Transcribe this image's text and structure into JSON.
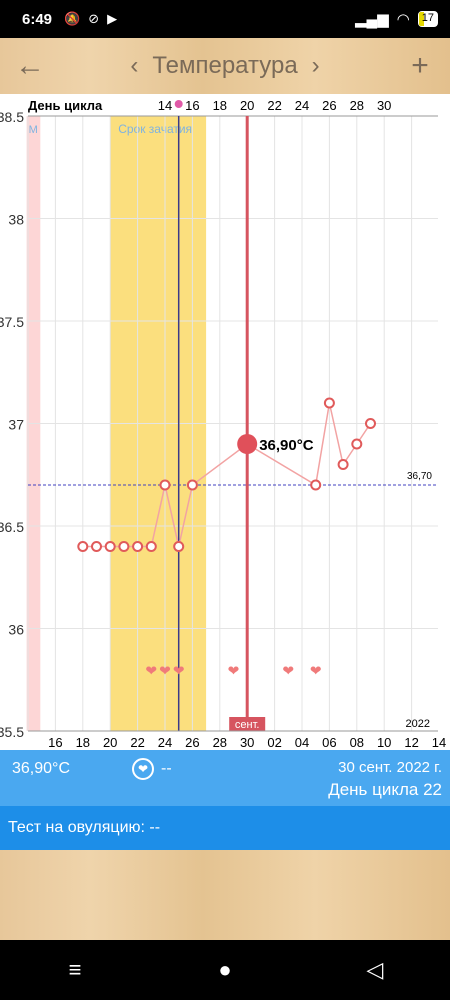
{
  "status": {
    "time": "6:49",
    "battery": "17"
  },
  "header": {
    "title": "Температура",
    "back_icon": "←",
    "prev_icon": "‹",
    "next_icon": "›",
    "add_icon": "+"
  },
  "chart_data": {
    "type": "line",
    "header_label": "День цикла",
    "cycle_day_labels": [
      {
        "day": 14,
        "x": 14
      },
      {
        "day": 16,
        "x": 16
      },
      {
        "day": 18,
        "x": 18
      },
      {
        "day": 20,
        "x": 20
      },
      {
        "day": 22,
        "x": 22
      },
      {
        "day": 24,
        "x": 24
      },
      {
        "day": 26,
        "x": 26
      },
      {
        "day": 28,
        "x": 28
      },
      {
        "day": 30,
        "x": 30
      }
    ],
    "date_ticks": [
      "16",
      "18",
      "20",
      "22",
      "24",
      "26",
      "28",
      "30",
      "02",
      "04",
      "06",
      "08",
      "10",
      "12",
      "14"
    ],
    "y_ticks": [
      "38.5",
      "38",
      "37.5",
      "37",
      "36.5",
      "36",
      "35.5"
    ],
    "ylim": [
      35.5,
      38.5
    ],
    "fertile_label": "Срок зачатия",
    "period_label": "М",
    "cover_line": 36.7,
    "cover_line_label": "36,70",
    "highlight_label": "36,90°C",
    "month_label": "сент.",
    "year_label": "2022",
    "points": [
      {
        "x": 18,
        "y": 36.4
      },
      {
        "x": 19,
        "y": 36.4
      },
      {
        "x": 20,
        "y": 36.4
      },
      {
        "x": 21,
        "y": 36.4
      },
      {
        "x": 22,
        "y": 36.4
      },
      {
        "x": 23,
        "y": 36.4
      },
      {
        "x": 24,
        "y": 36.7
      },
      {
        "x": 25,
        "y": 36.4
      },
      {
        "x": 26,
        "y": 36.7
      },
      {
        "x": 35,
        "y": 36.7
      },
      {
        "x": 36,
        "y": 37.1
      },
      {
        "x": 37,
        "y": 36.8
      },
      {
        "x": 38,
        "y": 36.9
      },
      {
        "x": 39,
        "y": 37.0
      }
    ],
    "highlight_point": {
      "x": 30,
      "y": 36.9
    },
    "hearts_x": [
      23,
      24,
      25,
      29,
      33,
      35
    ],
    "fertile_range": [
      20,
      27
    ],
    "ovulation_day": 25,
    "selected_day": 30,
    "period_range": [
      13.9,
      14.9
    ]
  },
  "info": {
    "temperature": "36,90°C",
    "heart_icon": "❤",
    "intercourse": "--",
    "date": "30 сент. 2022 г.",
    "cycle_day": "День цикла 22"
  },
  "ovulation_test": "Тест на овуляцию: --",
  "nav": {
    "menu_icon": "≡",
    "home_icon": "●",
    "back_icon": "◁"
  }
}
